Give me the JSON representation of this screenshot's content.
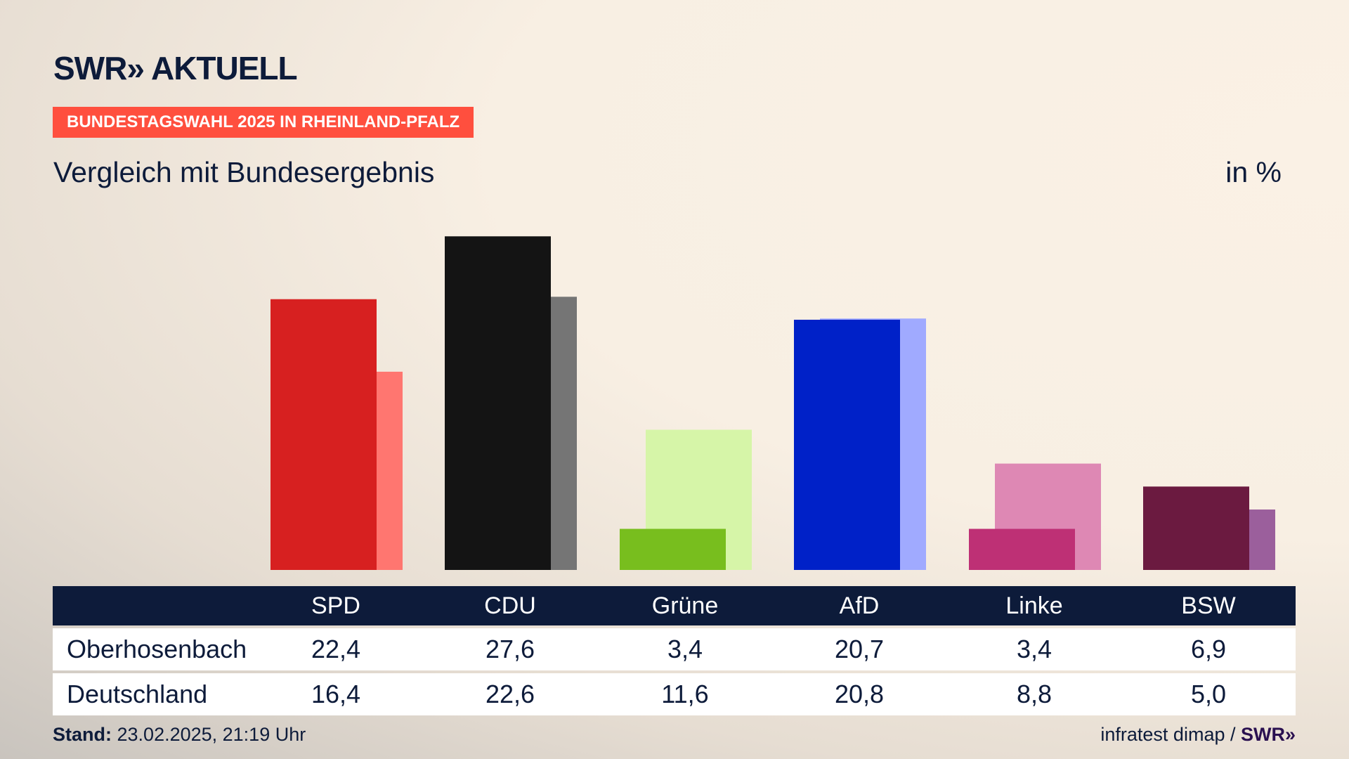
{
  "header": {
    "logo": "SWR» AKTUELL",
    "banner": "BUNDESTAGSWAHL 2025 IN RHEINLAND-PFALZ",
    "subtitle": "Vergleich mit Bundesergebnis",
    "unit": "in %"
  },
  "chart_data": {
    "type": "bar",
    "categories": [
      "SPD",
      "CDU",
      "Grüne",
      "AfD",
      "Linke",
      "BSW"
    ],
    "series": [
      {
        "name": "Oberhosenbach",
        "values": [
          22.4,
          27.6,
          3.4,
          20.7,
          3.4,
          6.9
        ],
        "colors": [
          "#d72020",
          "#141414",
          "#78be1e",
          "#0021c8",
          "#be3075",
          "#6b1a40"
        ]
      },
      {
        "name": "Deutschland",
        "values": [
          16.4,
          22.6,
          11.6,
          20.8,
          8.8,
          5.0
        ],
        "colors": [
          "#ff7670",
          "#757575",
          "#d6f5a8",
          "#a0aaff",
          "#de88b4",
          "#9b5f9c"
        ]
      }
    ],
    "value_labels": {
      "Oberhosenbach": [
        "22,4",
        "27,6",
        "3,4",
        "20,7",
        "3,4",
        "6,9"
      ],
      "Deutschland": [
        "16,4",
        "22,6",
        "11,6",
        "20,8",
        "8,8",
        "5,0"
      ]
    }
  },
  "footer": {
    "stand_label": "Stand:",
    "stand_value": "23.02.2025, 21:19 Uhr",
    "source": "infratest dimap / ",
    "source_logo": "SWR»"
  },
  "colors": {
    "table_header": "#0d1b3a",
    "banner": "#ff4f3e"
  }
}
